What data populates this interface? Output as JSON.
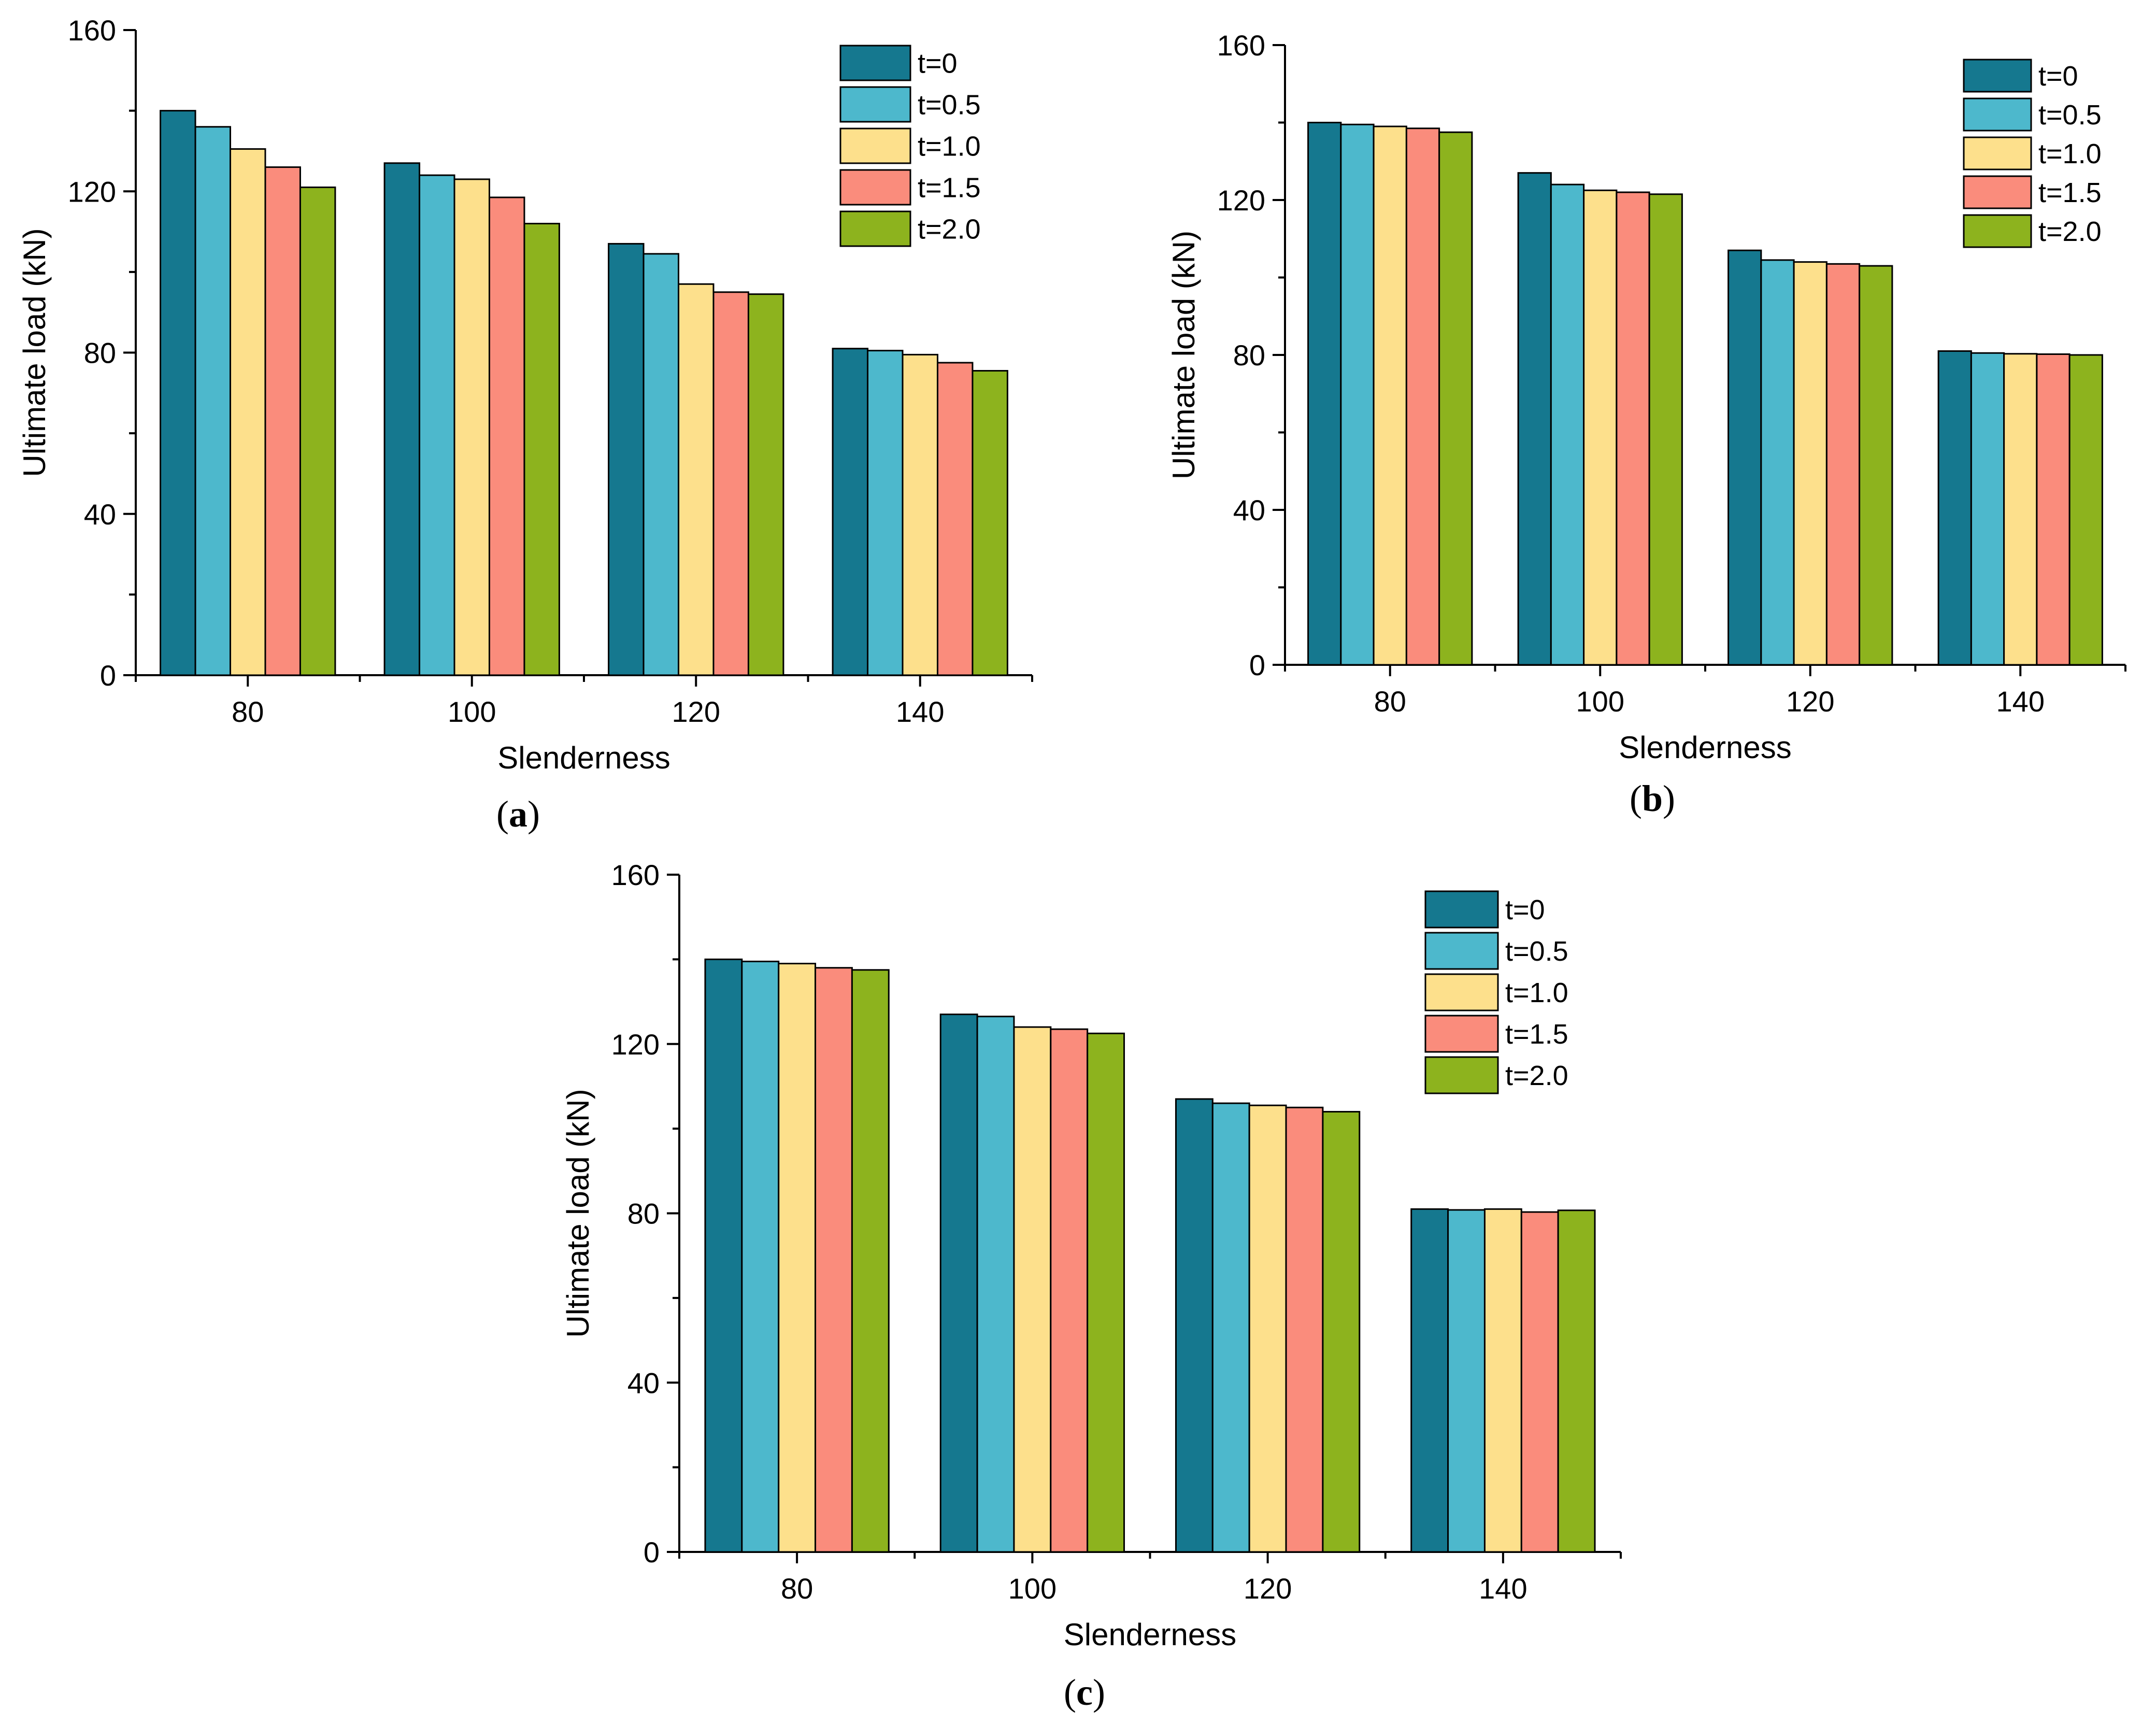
{
  "chart_data": [
    {
      "type": "bar",
      "panel_label": "a",
      "xlabel": "Slenderness",
      "ylabel": "Ultimate load (kN)",
      "ylim": [
        0,
        160
      ],
      "yticks": [
        0,
        40,
        80,
        120,
        160
      ],
      "categories": [
        "80",
        "100",
        "120",
        "140"
      ],
      "legend_position": "top-right",
      "series": [
        {
          "name": "t=0",
          "color": "#15788f",
          "values": [
            140,
            127,
            107,
            81
          ]
        },
        {
          "name": "t=0.5",
          "color": "#4db8cc",
          "values": [
            136,
            124,
            104.5,
            80.5
          ]
        },
        {
          "name": "t=1.0",
          "color": "#fde08c",
          "values": [
            130.5,
            123,
            97,
            79.5
          ]
        },
        {
          "name": "t=1.5",
          "color": "#fa8c7c",
          "values": [
            126,
            118.5,
            95,
            77.5
          ]
        },
        {
          "name": "t=2.0",
          "color": "#8db31e",
          "values": [
            121,
            112,
            94.5,
            75.5
          ]
        }
      ]
    },
    {
      "type": "bar",
      "panel_label": "b",
      "xlabel": "Slenderness",
      "ylabel": "Ultimate load (kN)",
      "ylim": [
        0,
        160
      ],
      "yticks": [
        0,
        40,
        80,
        120,
        160
      ],
      "categories": [
        "80",
        "100",
        "120",
        "140"
      ],
      "legend_position": "top-right",
      "series": [
        {
          "name": "t=0",
          "color": "#15788f",
          "values": [
            140,
            127,
            107,
            81
          ]
        },
        {
          "name": "t=0.5",
          "color": "#4db8cc",
          "values": [
            139.5,
            124,
            104.5,
            80.5
          ]
        },
        {
          "name": "t=1.0",
          "color": "#fde08c",
          "values": [
            139,
            122.5,
            104,
            80.3
          ]
        },
        {
          "name": "t=1.5",
          "color": "#fa8c7c",
          "values": [
            138.5,
            122,
            103.5,
            80.2
          ]
        },
        {
          "name": "t=2.0",
          "color": "#8db31e",
          "values": [
            137.5,
            121.5,
            103,
            80
          ]
        }
      ]
    },
    {
      "type": "bar",
      "panel_label": "c",
      "xlabel": "Slenderness",
      "ylabel": "Ultimate load (kN)",
      "ylim": [
        0,
        160
      ],
      "yticks": [
        0,
        40,
        80,
        120,
        160
      ],
      "categories": [
        "80",
        "100",
        "120",
        "140"
      ],
      "legend_position": "top-right",
      "series": [
        {
          "name": "t=0",
          "color": "#15788f",
          "values": [
            140,
            127,
            107,
            81
          ]
        },
        {
          "name": "t=0.5",
          "color": "#4db8cc",
          "values": [
            139.5,
            126.5,
            106,
            80.8
          ]
        },
        {
          "name": "t=1.0",
          "color": "#fde08c",
          "values": [
            139,
            124,
            105.5,
            81
          ]
        },
        {
          "name": "t=1.5",
          "color": "#fa8c7c",
          "values": [
            138,
            123.5,
            105,
            80.3
          ]
        },
        {
          "name": "t=2.0",
          "color": "#8db31e",
          "values": [
            137.5,
            122.5,
            104,
            80.7
          ]
        }
      ]
    }
  ]
}
